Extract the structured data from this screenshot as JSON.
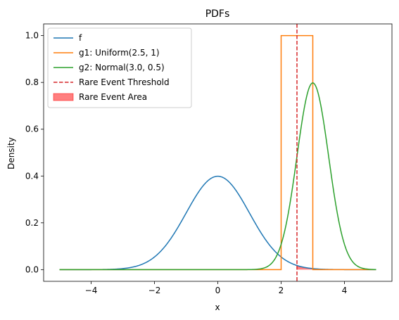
{
  "chart_data": {
    "type": "line",
    "title": "PDFs",
    "xlabel": "x",
    "ylabel": "Density",
    "xlim": [
      -5.5,
      5.5
    ],
    "ylim": [
      -0.05,
      1.05
    ],
    "xticks": [
      -4,
      -2,
      0,
      2,
      4
    ],
    "yticks": [
      0.0,
      0.2,
      0.4,
      0.6,
      0.8,
      1.0
    ],
    "xtick_labels": [
      "−4",
      "−2",
      "0",
      "2",
      "4"
    ],
    "ytick_labels": [
      "0.0",
      "0.2",
      "0.4",
      "0.6",
      "0.8",
      "1.0"
    ],
    "grid": false,
    "legend_position": "top-left",
    "series": [
      {
        "name": "f",
        "kind": "normal",
        "mean": 0,
        "sd": 1,
        "x_range": [
          -5,
          5
        ],
        "color": "#1f77b4",
        "style": "solid"
      },
      {
        "name": "g1: Uniform(2.5, 1)",
        "kind": "uniform",
        "low": 2,
        "high": 3,
        "x_range": [
          -5,
          5
        ],
        "color": "#ff7f0e",
        "style": "solid"
      },
      {
        "name": "g2: Normal(3.0, 0.5)",
        "kind": "normal",
        "mean": 3,
        "sd": 0.5,
        "x_range": [
          -5,
          5
        ],
        "color": "#2ca02c",
        "style": "solid"
      },
      {
        "name": "Rare Event Threshold",
        "kind": "vline",
        "x": 2.5,
        "color": "#d62728",
        "style": "dashed"
      },
      {
        "name": "Rare Event Area",
        "kind": "fill_under_f",
        "x_range": [
          2.5,
          5
        ],
        "color": "#ff0000",
        "opacity": 0.5
      }
    ]
  }
}
